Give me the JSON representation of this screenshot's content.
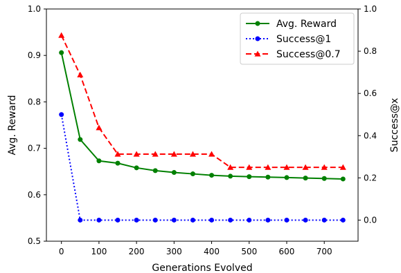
{
  "chart_data": {
    "type": "line",
    "xlabel": "Generations Evolved",
    "ylabel_left": "Avg. Reward",
    "ylabel_right": "Success@x",
    "xlim": [
      -40,
      790
    ],
    "ylim_left": [
      0.5,
      1.0
    ],
    "ylim_right": [
      -0.1,
      1.0
    ],
    "x_ticks": [
      0,
      100,
      200,
      300,
      400,
      500,
      600,
      700
    ],
    "y_left_ticks": [
      0.5,
      0.6,
      0.7,
      0.8,
      0.9,
      1.0
    ],
    "y_right_ticks": [
      0.0,
      0.2,
      0.4,
      0.6,
      0.8,
      1.0
    ],
    "grid": false,
    "legend_position": "top-right",
    "x": [
      0,
      50,
      100,
      150,
      200,
      250,
      300,
      350,
      400,
      450,
      500,
      550,
      600,
      650,
      700,
      750
    ],
    "series": [
      {
        "name": "Avg. Reward",
        "axis": "left",
        "color": "#008000",
        "line_style": "solid",
        "marker": "circle",
        "values": [
          0.906,
          0.719,
          0.673,
          0.668,
          0.658,
          0.652,
          0.648,
          0.645,
          0.642,
          0.64,
          0.639,
          0.638,
          0.637,
          0.636,
          0.635,
          0.634
        ]
      },
      {
        "name": "Success@1",
        "axis": "right",
        "color": "#0000ff",
        "line_style": "dotted",
        "marker": "circle",
        "values": [
          0.5,
          0.0,
          0.0,
          0.0,
          0.0,
          0.0,
          0.0,
          0.0,
          0.0,
          0.0,
          0.0,
          0.0,
          0.0,
          0.0,
          0.0,
          0.0
        ]
      },
      {
        "name": "Success@0.7",
        "axis": "right",
        "color": "#ff0000",
        "line_style": "dashed",
        "marker": "triangle",
        "values": [
          0.875,
          0.688,
          0.4375,
          0.3125,
          0.3125,
          0.3125,
          0.3125,
          0.3125,
          0.3125,
          0.25,
          0.25,
          0.25,
          0.25,
          0.25,
          0.25,
          0.25
        ]
      }
    ]
  }
}
